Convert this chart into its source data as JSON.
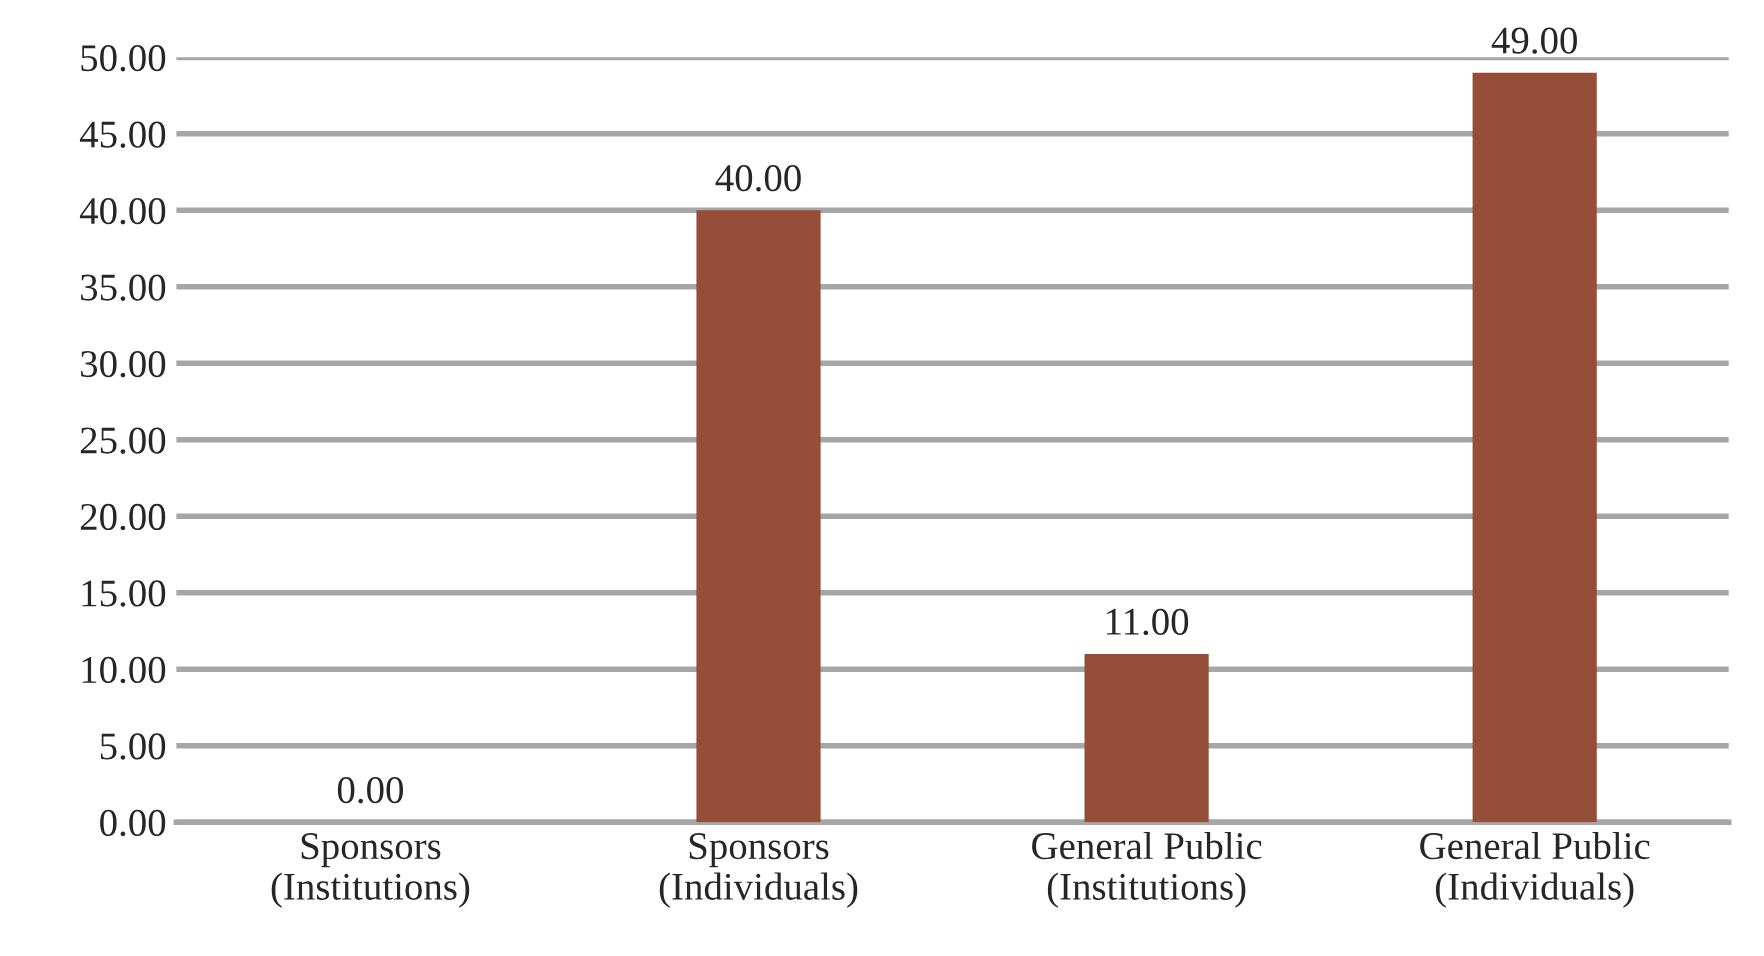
{
  "chart_data": {
    "type": "bar",
    "categories": [
      "Sponsors\n(Institutions)",
      "Sponsors\n(Individuals)",
      "General Public\n(Institutions)",
      "General Public\n(Individuals)"
    ],
    "values": [
      0,
      40,
      11,
      49
    ],
    "value_labels": [
      "0.00",
      "40.00",
      "11.00",
      "49.00"
    ],
    "color": "#954f38",
    "ylim": [
      0,
      50
    ],
    "yticks": [
      {
        "value": 0,
        "label": "0.00"
      },
      {
        "value": 5,
        "label": "5.00"
      },
      {
        "value": 10,
        "label": "10.00"
      },
      {
        "value": 15,
        "label": "15.00"
      },
      {
        "value": 20,
        "label": "20.00"
      },
      {
        "value": 25,
        "label": "25.00"
      },
      {
        "value": 30,
        "label": "30.00"
      },
      {
        "value": 35,
        "label": "35.00"
      },
      {
        "value": 40,
        "label": "40.00"
      },
      {
        "value": 45,
        "label": "45.00"
      },
      {
        "value": 50,
        "label": "50.00"
      }
    ],
    "grid": "y"
  }
}
